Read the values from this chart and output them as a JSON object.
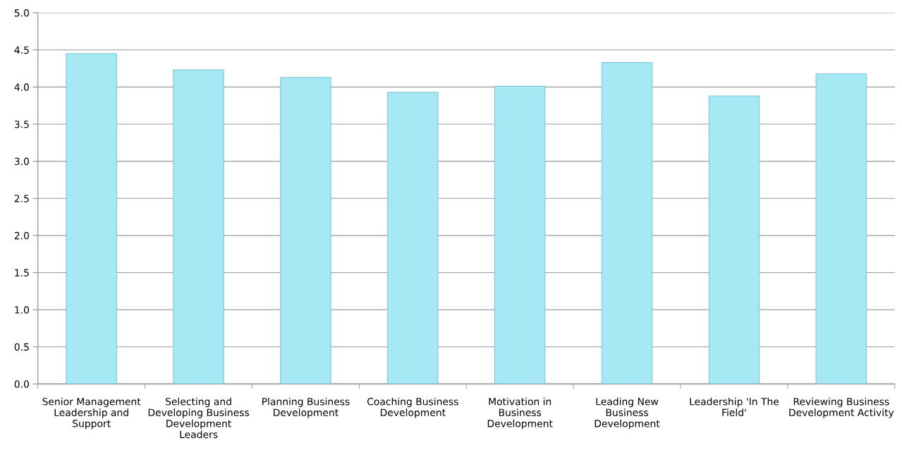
{
  "chart_data": {
    "type": "bar",
    "categories": [
      "Senior Management Leadership and Support",
      "Selecting and Developing Business Development Leaders",
      "Planning Business Development",
      "Coaching Business Development",
      "Motivation in Business Development",
      "Leading New Business Development",
      "Leadership 'In The Field'",
      "Reviewing Business Development Activity"
    ],
    "values": [
      4.45,
      4.23,
      4.13,
      3.93,
      4.01,
      4.33,
      3.88,
      4.18
    ],
    "color": "#a6e8f4",
    "ylim": [
      0,
      5
    ],
    "yticks": [
      {
        "value": 0,
        "label": "0.0"
      },
      {
        "value": 0.5,
        "label": "0.5"
      },
      {
        "value": 1,
        "label": "1.0"
      },
      {
        "value": 1.5,
        "label": "1.5"
      },
      {
        "value": 2,
        "label": "2.0"
      },
      {
        "value": 2.5,
        "label": "2.5"
      },
      {
        "value": 3,
        "label": "3.0"
      },
      {
        "value": 3.5,
        "label": "3.5"
      },
      {
        "value": 4,
        "label": "4.0"
      },
      {
        "value": 4.5,
        "label": "4.5"
      },
      {
        "value": 5,
        "label": "5.0"
      }
    ],
    "grid": "y",
    "legend": false
  }
}
